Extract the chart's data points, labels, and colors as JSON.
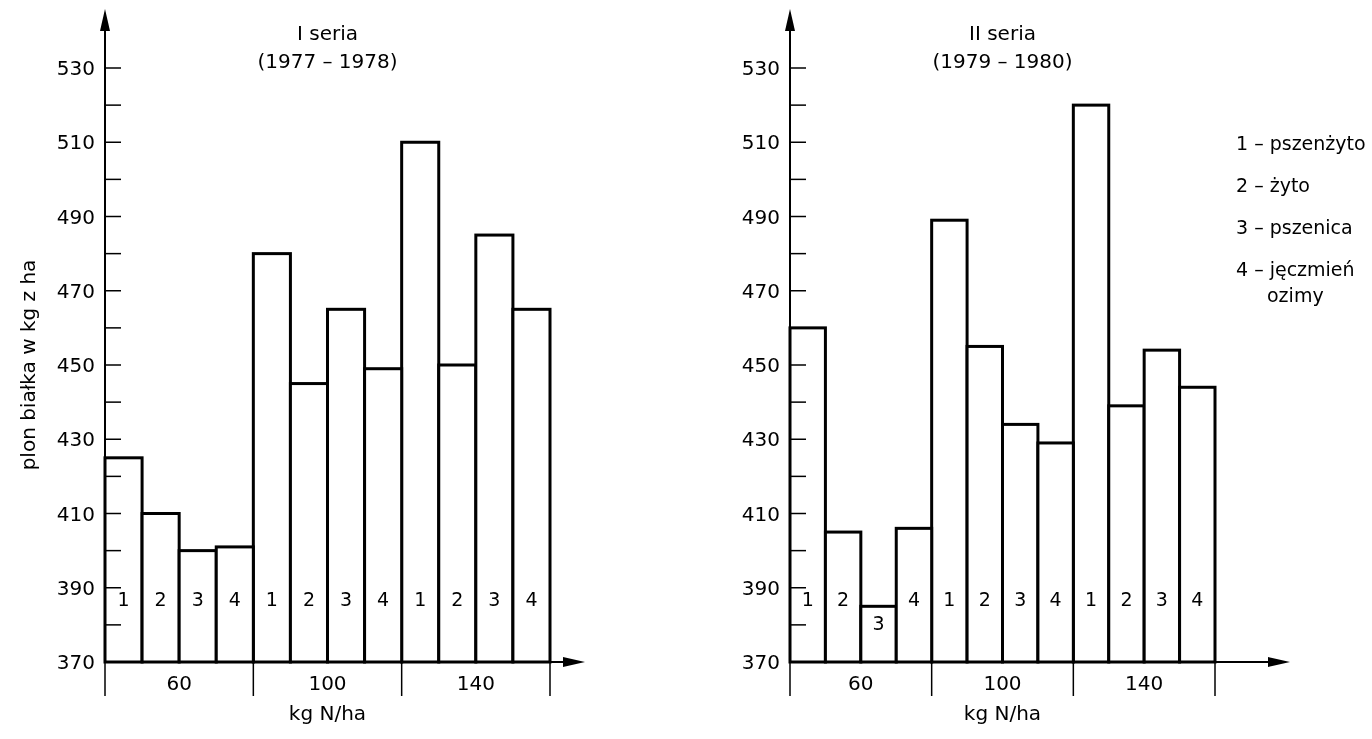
{
  "chart_data": [
    {
      "type": "bar",
      "title": "I seria",
      "subtitle": "(1977 – 1978)",
      "xlabel": "kg N/ha",
      "ylabel": "plon białka w kg z ha",
      "categories": [
        "60",
        "100",
        "140"
      ],
      "series": [
        {
          "name": "1",
          "color": "#ffffff",
          "values": [
            425,
            480,
            510
          ]
        },
        {
          "name": "2",
          "color": "#ffffff",
          "values": [
            410,
            445,
            450
          ]
        },
        {
          "name": "3",
          "color": "#ffffff",
          "values": [
            400,
            465,
            485
          ]
        },
        {
          "name": "4",
          "color": "#ffffff",
          "values": [
            401,
            449,
            465
          ]
        }
      ],
      "ylim": [
        370,
        540
      ],
      "yticks": [
        370,
        {
          "value": 380,
          "label": null
        },
        390,
        {
          "value": 400,
          "label": null
        },
        410,
        {
          "value": 420,
          "label": null
        },
        430,
        {
          "value": 440,
          "label": null
        },
        450,
        {
          "value": 460,
          "label": null
        },
        470,
        {
          "value": 480,
          "label": null
        },
        490,
        {
          "value": 500,
          "label": null
        },
        510,
        {
          "value": 520,
          "label": null
        },
        530
      ],
      "grid": false
    },
    {
      "type": "bar",
      "title": "II seria",
      "subtitle": "(1979 – 1980)",
      "xlabel": "kg N/ha",
      "categories": [
        "60",
        "100",
        "140"
      ],
      "series": [
        {
          "name": "1",
          "color": "#ffffff",
          "values": [
            460,
            489,
            520
          ]
        },
        {
          "name": "2",
          "color": "#ffffff",
          "values": [
            405,
            455,
            439
          ]
        },
        {
          "name": "3",
          "color": "#ffffff",
          "values": [
            385,
            434,
            454
          ]
        },
        {
          "name": "4",
          "color": "#ffffff",
          "values": [
            406,
            429,
            444
          ]
        }
      ],
      "ylim": [
        370,
        540
      ],
      "yticks": [
        370,
        {
          "value": 380,
          "label": null
        },
        390,
        {
          "value": 400,
          "label": null
        },
        410,
        {
          "value": 420,
          "label": null
        },
        430,
        {
          "value": 440,
          "label": null
        },
        450,
        {
          "value": 460,
          "label": null
        },
        470,
        {
          "value": 480,
          "label": null
        },
        490,
        {
          "value": 500,
          "label": null
        },
        510,
        {
          "value": 520,
          "label": null
        },
        530
      ],
      "grid": false,
      "annotations": [
        "1 – pszenżyto",
        "2 – żyto",
        "3 – pszenica",
        "4 – jęczmień\nozimy"
      ]
    }
  ]
}
